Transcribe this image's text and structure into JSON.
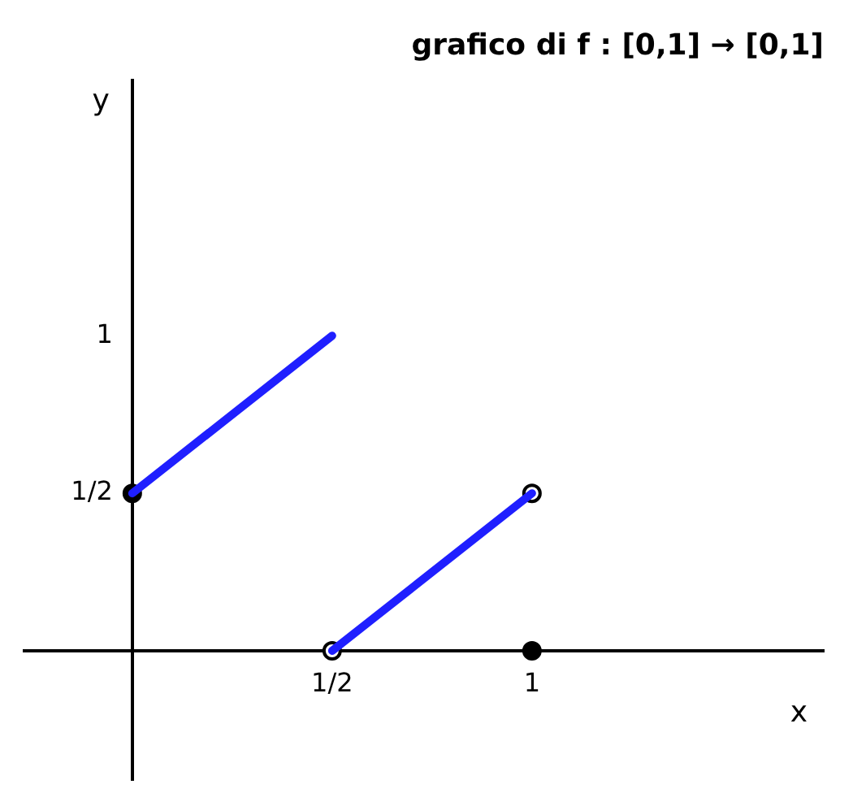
{
  "chart_data": {
    "type": "line",
    "title": "grafico di f : [0,1] → [0,1]",
    "xlabel": "x",
    "ylabel": "y",
    "xlim": [
      -0.27,
      1.73
    ],
    "ylim": [
      -0.41,
      1.81
    ],
    "xticks": [
      {
        "value": 0.5,
        "label": "1/2"
      },
      {
        "value": 1,
        "label": "1"
      }
    ],
    "yticks": [
      {
        "value": 0.5,
        "label": "1/2"
      },
      {
        "value": 1,
        "label": "1"
      }
    ],
    "grid": false,
    "legend": false,
    "line_style": "solid",
    "series": [
      {
        "color": "#1f1fff",
        "marker": "none",
        "x": [
          0,
          0.5
        ],
        "values": [
          0.5,
          1
        ]
      },
      {
        "color": "#1f1fff",
        "marker": "none",
        "x": [
          0.5,
          1
        ],
        "values": [
          0,
          0.5
        ]
      },
      {
        "type": "scatter",
        "marker": "circle",
        "color": "#ffffff",
        "x": [
          0.5,
          1
        ],
        "values": [
          0,
          0.5
        ]
      },
      {
        "type": "scatter",
        "marker": "circle",
        "color": "#000000",
        "x": [
          0,
          1
        ],
        "values": [
          0.5,
          0
        ]
      }
    ]
  }
}
